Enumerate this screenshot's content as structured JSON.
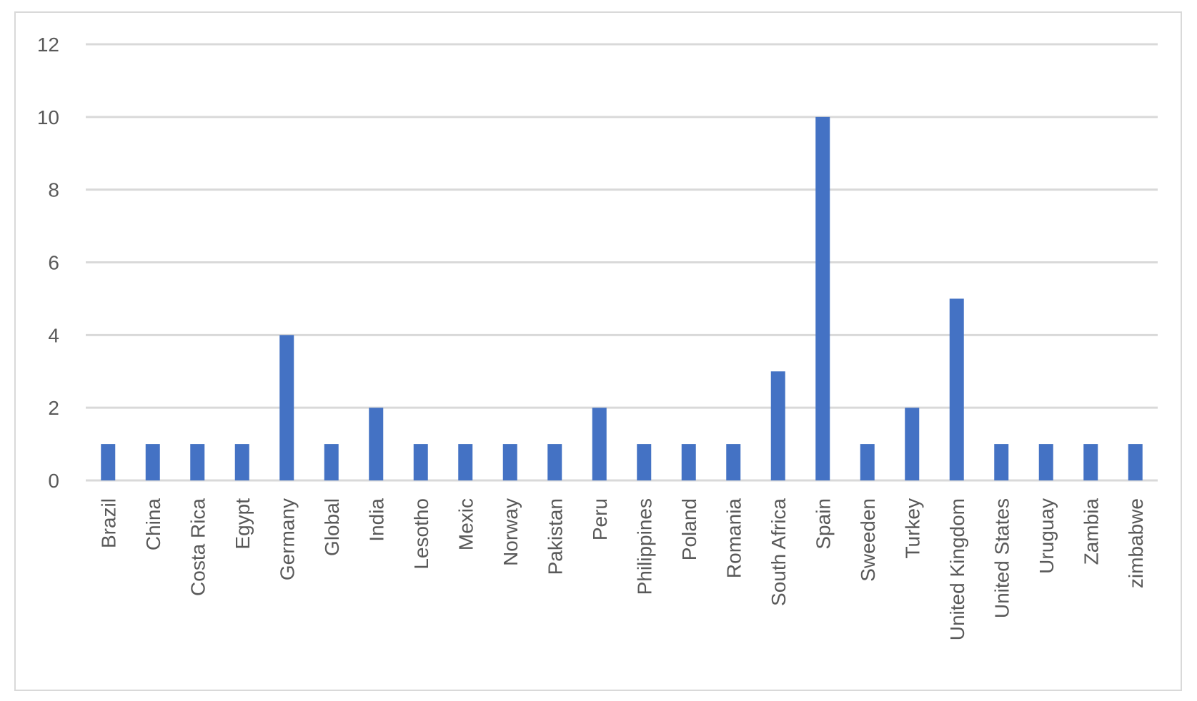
{
  "chart_data": {
    "type": "bar",
    "title": "",
    "xlabel": "",
    "ylabel": "",
    "categories": [
      "Brazil",
      "China",
      "Costa Rica",
      "Egypt",
      "Germany",
      "Global",
      "India",
      "Lesotho",
      "Mexic",
      "Norway",
      "Pakistan",
      "Peru",
      "Philippines",
      "Poland",
      "Romania",
      "South Africa",
      "Spain",
      "Sweeden",
      "Turkey",
      "United Kingdom",
      "United States",
      "Uruguay",
      "Zambia",
      "zimbabwe"
    ],
    "values": [
      1,
      1,
      1,
      1,
      4,
      1,
      2,
      1,
      1,
      1,
      1,
      2,
      1,
      1,
      1,
      3,
      10,
      1,
      2,
      5,
      1,
      1,
      1,
      1
    ],
    "ylim": [
      0,
      12
    ],
    "yticks": [
      0,
      2,
      4,
      6,
      8,
      10,
      12
    ],
    "grid": true,
    "legend": "none",
    "colors": {
      "bar": "#4472C4",
      "grid": "#d9d9d9",
      "axis": "#d9d9d9",
      "text": "#595959"
    }
  }
}
